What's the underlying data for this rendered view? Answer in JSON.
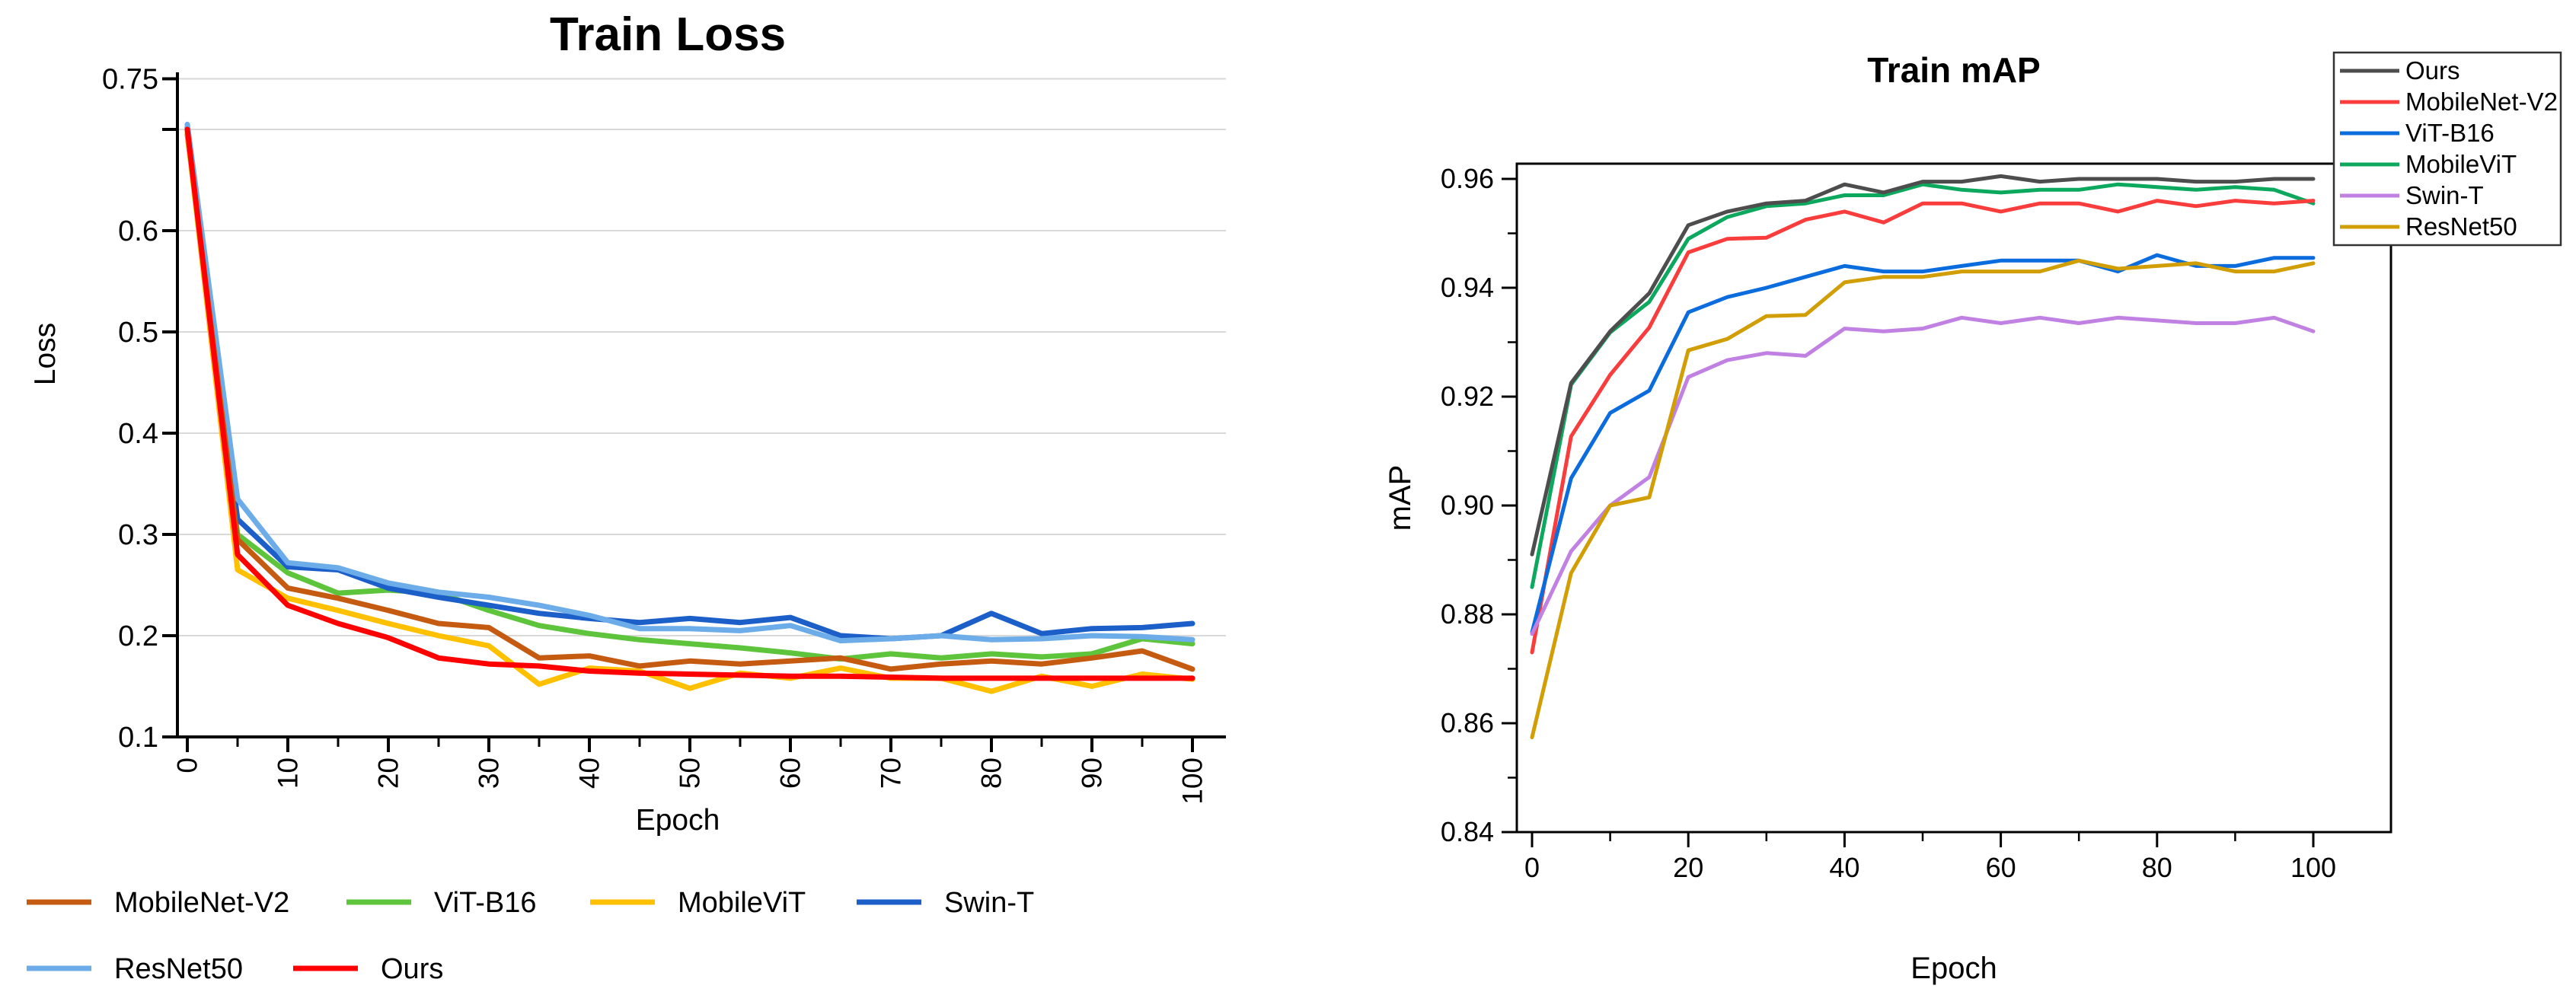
{
  "page": {
    "background": "#ffffff"
  },
  "chart_data": [
    {
      "type": "line",
      "title": "Train Loss",
      "xlabel": "Epoch",
      "ylabel": "Loss",
      "x": [
        0,
        5,
        10,
        15,
        20,
        25,
        30,
        35,
        40,
        45,
        50,
        55,
        60,
        65,
        70,
        75,
        80,
        85,
        90,
        95,
        100
      ],
      "xlim": [
        0,
        100
      ],
      "ylim": [
        0.1,
        0.75
      ],
      "grid": true,
      "gridline_color": "#d9d9d9",
      "gridline_values": [
        0.2,
        0.3,
        0.4,
        0.5,
        0.6,
        0.7,
        0.75
      ],
      "ytick_labels": [
        "0.1",
        "0.2",
        "0.3",
        "0.4",
        "0.5",
        "0.6",
        "0.75"
      ],
      "ytick_values": [
        0.1,
        0.2,
        0.3,
        0.4,
        0.5,
        0.6,
        0.75
      ],
      "ytick_unlabeled_values": [
        0.7
      ],
      "xtick_labels": [
        "0",
        "10",
        "20",
        "30",
        "40",
        "50",
        "60",
        "70",
        "80",
        "90",
        "100"
      ],
      "xtick_values": [
        0,
        10,
        20,
        30,
        40,
        50,
        60,
        70,
        80,
        90,
        100
      ],
      "xtick_minor_values": [
        5,
        15,
        25,
        35,
        45,
        55,
        65,
        75,
        85,
        95
      ],
      "xtick_label_rotation_deg": -90,
      "legend_position": "bottom",
      "series": [
        {
          "name": "MobileNet-V2",
          "color": "#C55A11",
          "values": [
            0.695,
            0.295,
            0.247,
            0.237,
            0.225,
            0.212,
            0.208,
            0.178,
            0.18,
            0.17,
            0.175,
            0.172,
            0.175,
            0.178,
            0.167,
            0.172,
            0.175,
            0.172,
            0.178,
            0.185,
            0.167
          ]
        },
        {
          "name": "ViT-B16",
          "color": "#5EC43C",
          "values": [
            0.7,
            0.3,
            0.262,
            0.242,
            0.245,
            0.242,
            0.225,
            0.21,
            0.202,
            0.196,
            0.192,
            0.188,
            0.183,
            0.177,
            0.182,
            0.178,
            0.182,
            0.179,
            0.182,
            0.197,
            0.192
          ]
        },
        {
          "name": "MobileViT",
          "color": "#FFC000",
          "values": [
            0.697,
            0.265,
            0.237,
            0.225,
            0.212,
            0.2,
            0.19,
            0.152,
            0.168,
            0.165,
            0.148,
            0.163,
            0.158,
            0.168,
            0.158,
            0.158,
            0.145,
            0.16,
            0.15,
            0.162,
            0.157
          ]
        },
        {
          "name": "Swin-T",
          "color": "#1C5FC8",
          "values": [
            0.702,
            0.315,
            0.268,
            0.265,
            0.247,
            0.238,
            0.23,
            0.222,
            0.217,
            0.213,
            0.217,
            0.213,
            0.218,
            0.2,
            0.197,
            0.2,
            0.222,
            0.202,
            0.207,
            0.208,
            0.212
          ]
        },
        {
          "name": "ResNet50",
          "color": "#6CACE8",
          "values": [
            0.705,
            0.335,
            0.272,
            0.267,
            0.252,
            0.243,
            0.238,
            0.23,
            0.22,
            0.207,
            0.207,
            0.205,
            0.21,
            0.195,
            0.197,
            0.2,
            0.196,
            0.197,
            0.2,
            0.199,
            0.196
          ]
        },
        {
          "name": "Ours",
          "color": "#FF0000",
          "values": [
            0.7,
            0.28,
            0.23,
            0.212,
            0.198,
            0.178,
            0.172,
            0.17,
            0.165,
            0.163,
            0.162,
            0.161,
            0.16,
            0.16,
            0.159,
            0.158,
            0.158,
            0.158,
            0.158,
            0.158,
            0.158
          ]
        }
      ],
      "legend_rows": [
        [
          "MobileNet-V2",
          "ViT-B16",
          "MobileViT",
          "Swin-T"
        ],
        [
          "ResNet50",
          "Ours"
        ]
      ]
    },
    {
      "type": "line",
      "title": "Train mAP",
      "xlabel": "Epoch",
      "ylabel": "mAP",
      "x": [
        0,
        5,
        10,
        15,
        20,
        25,
        30,
        35,
        40,
        45,
        50,
        55,
        60,
        65,
        70,
        75,
        80,
        85,
        90,
        95,
        100
      ],
      "xlim": [
        0,
        100
      ],
      "ylim": [
        0.84,
        0.963
      ],
      "grid": false,
      "frame_box": true,
      "ytick_labels": [
        "0.84",
        "0.86",
        "0.88",
        "0.90",
        "0.92",
        "0.94",
        "0.96"
      ],
      "ytick_values": [
        0.84,
        0.86,
        0.88,
        0.9,
        0.92,
        0.94,
        0.96
      ],
      "ytick_minor_values": [
        0.85,
        0.87,
        0.89,
        0.91,
        0.93,
        0.95
      ],
      "xtick_labels": [
        "0",
        "20",
        "40",
        "60",
        "80",
        "100"
      ],
      "xtick_values": [
        0,
        20,
        40,
        60,
        80,
        100
      ],
      "xtick_minor_values": [
        10,
        30,
        50,
        70,
        90
      ],
      "legend_position": "top-right-box",
      "series": [
        {
          "name": "Ours",
          "color": "#4D4D4D",
          "values": [
            0.891,
            0.9225,
            0.932,
            0.939,
            0.9515,
            0.954,
            0.9555,
            0.956,
            0.959,
            0.9575,
            0.9595,
            0.9595,
            0.9605,
            0.9595,
            0.96,
            0.96,
            0.96,
            0.9595,
            0.9595,
            0.96,
            0.96
          ]
        },
        {
          "name": "MobileNet-V2",
          "color": "#F93C3C",
          "values": [
            0.873,
            0.9127,
            0.924,
            0.9327,
            0.9465,
            0.949,
            0.9492,
            0.9525,
            0.954,
            0.952,
            0.9555,
            0.9555,
            0.954,
            0.9555,
            0.9555,
            0.954,
            0.956,
            0.955,
            0.956,
            0.9555,
            0.956
          ]
        },
        {
          "name": "ViT-B16",
          "color": "#0B6CDE",
          "values": [
            0.8767,
            0.905,
            0.917,
            0.9211,
            0.9355,
            0.9383,
            0.94,
            0.942,
            0.944,
            0.943,
            0.943,
            0.944,
            0.945,
            0.945,
            0.945,
            0.943,
            0.946,
            0.944,
            0.944,
            0.9455,
            0.9455
          ]
        },
        {
          "name": "MobileViT",
          "color": "#0CA85E",
          "values": [
            0.885,
            0.9222,
            0.9318,
            0.9374,
            0.949,
            0.953,
            0.955,
            0.9555,
            0.957,
            0.957,
            0.959,
            0.958,
            0.9575,
            0.958,
            0.958,
            0.959,
            0.9585,
            0.958,
            0.9585,
            0.958,
            0.9555
          ]
        },
        {
          "name": "Swin-T",
          "color": "#C081E2",
          "values": [
            0.8764,
            0.8916,
            0.9,
            0.9052,
            0.9236,
            0.9267,
            0.928,
            0.9275,
            0.9325,
            0.932,
            0.9325,
            0.9345,
            0.9335,
            0.9345,
            0.9335,
            0.9345,
            0.934,
            0.9335,
            0.9335,
            0.9345,
            0.932
          ]
        },
        {
          "name": "ResNet50",
          "color": "#D29E06",
          "values": [
            0.8574,
            0.8876,
            0.9,
            0.9015,
            0.9285,
            0.9306,
            0.9348,
            0.935,
            0.941,
            0.942,
            0.942,
            0.943,
            0.943,
            0.943,
            0.945,
            0.9435,
            0.944,
            0.9445,
            0.943,
            0.943,
            0.9445
          ]
        }
      ]
    }
  ]
}
